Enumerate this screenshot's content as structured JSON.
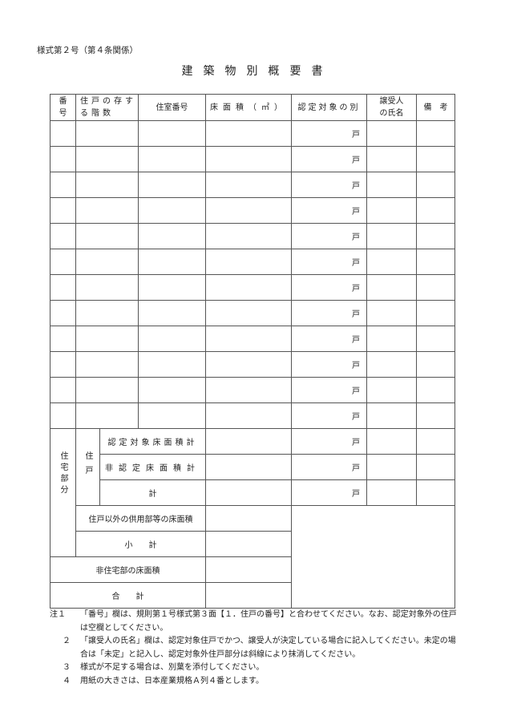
{
  "form_number": "様式第２号（第４条関係）",
  "title": "建築物別概要書",
  "headers": {
    "number": "番号",
    "floor": "住戸の存する階数",
    "room": "住室番号",
    "area": "床面積（㎡）",
    "certified": "認定対象の別",
    "transferee": "譲受人の氏名",
    "remarks": "備　考"
  },
  "unit": "戸",
  "row_count": 12,
  "summary": {
    "housing_part": "住宅部分",
    "dwelling": "住戸",
    "certified_total": "認定対象床面積計",
    "noncertified_total": "非認定床面積計",
    "total": "計",
    "common_area": "住戸以外の供用部等の床面積",
    "subtotal": "小　　計",
    "nonresidential": "非住宅部の床面積",
    "grand_total": "合　　計"
  },
  "notes": [
    {
      "n": "注１",
      "text": "「番号」欄は、規則第１号様式第３面【１．住戸の番号】と合わせてください。なお、認定対象外の住戸は空欄としてください。"
    },
    {
      "n": "２",
      "text": "「譲受人の氏名」欄は、認定対象住戸でかつ、譲受人が決定している場合に記入してください。未定の場合は「未定」と記入し、認定対象外住戸部分は斜線により抹消してください。"
    },
    {
      "n": "３",
      "text": "様式が不足する場合は、別葉を添付してください。"
    },
    {
      "n": "４",
      "text": "用紙の大きさは、日本産業規格Ａ列４番とします。"
    }
  ]
}
